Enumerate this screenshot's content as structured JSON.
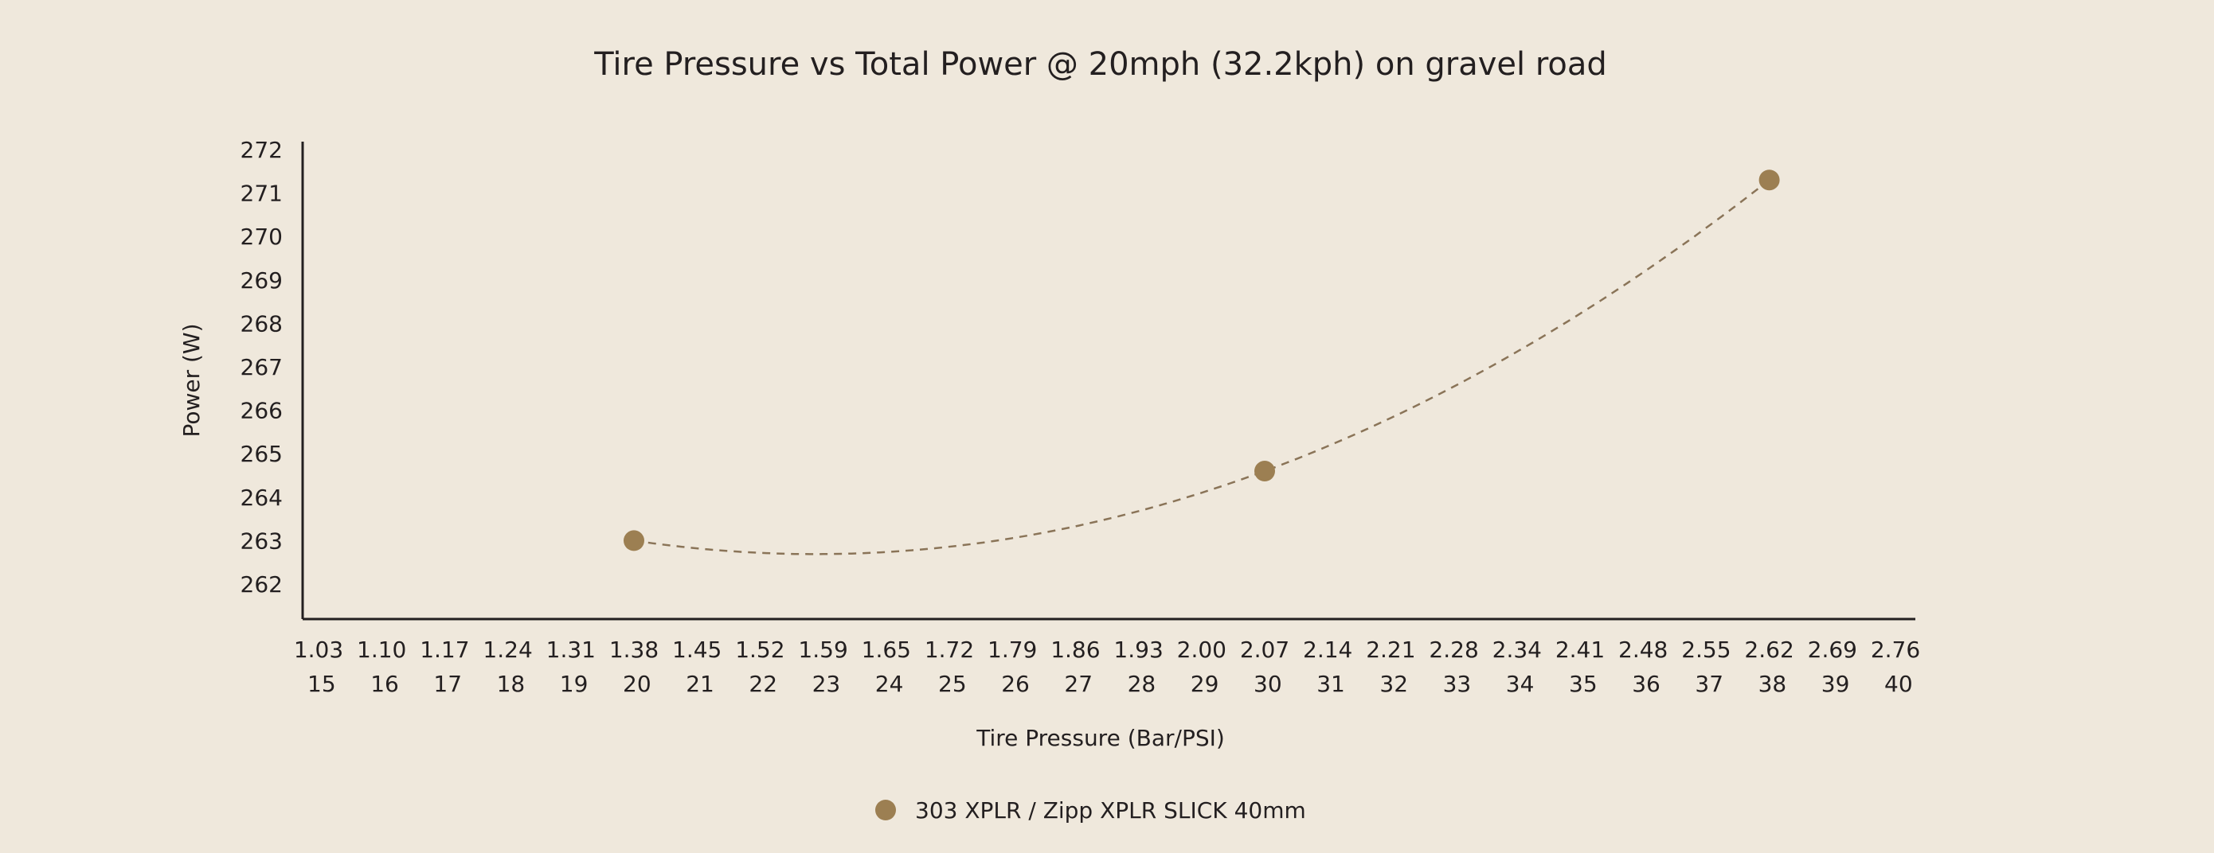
{
  "chart_data": {
    "type": "scatter",
    "title": "Tire Pressure vs Total Power @ 20mph (32.2kph) on gravel road",
    "xlabel": "Tire Pressure (Bar/PSI)",
    "ylabel": "Power (W)",
    "x_ticks_psi": [
      15,
      16,
      17,
      18,
      19,
      20,
      21,
      22,
      23,
      24,
      25,
      26,
      27,
      28,
      29,
      30,
      31,
      32,
      33,
      34,
      35,
      36,
      37,
      38,
      39,
      40
    ],
    "x_ticks_bar": [
      "1.03",
      "1.10",
      "1.17",
      "1.24",
      "1.31",
      "1.38",
      "1.45",
      "1.52",
      "1.59",
      "1.65",
      "1.72",
      "1.79",
      "1.86",
      "1.93",
      "2.00",
      "2.07",
      "2.14",
      "2.21",
      "2.28",
      "2.34",
      "2.41",
      "2.48",
      "2.55",
      "2.62",
      "2.69",
      "2.76"
    ],
    "y_ticks": [
      262,
      263,
      264,
      265,
      266,
      267,
      268,
      269,
      270,
      271,
      272
    ],
    "xlim": [
      15,
      40
    ],
    "ylim": [
      261.2,
      272.2
    ],
    "grid": false,
    "legend_position": "bottom-center",
    "series": [
      {
        "name": "303 XPLR / Zipp XPLR SLICK 40mm",
        "color": "#9c7f52",
        "x": [
          20,
          30,
          38
        ],
        "y": [
          263.0,
          264.6,
          271.3
        ],
        "trendline": "dashed-quadratic"
      }
    ]
  }
}
